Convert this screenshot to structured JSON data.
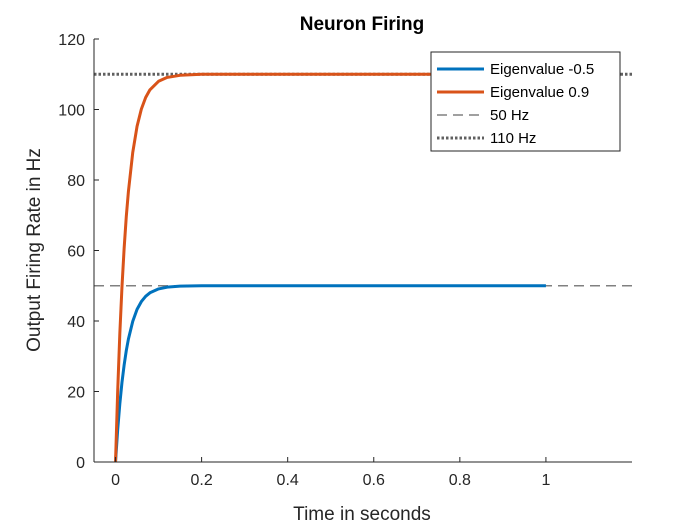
{
  "chart_data": {
    "type": "line",
    "title": "Neuron Firing",
    "xlabel": "Time in seconds",
    "ylabel": "Output Firing Rate in Hz",
    "xlim": [
      -0.05,
      1.2
    ],
    "ylim": [
      0,
      120
    ],
    "xticks": [
      0,
      0.2,
      0.4,
      0.6,
      0.8,
      1
    ],
    "xtick_labels": [
      "0",
      "0.2",
      "0.4",
      "0.6",
      "0.8",
      "1"
    ],
    "yticks": [
      0,
      20,
      40,
      60,
      80,
      100,
      120
    ],
    "ytick_labels": [
      "0",
      "20",
      "40",
      "60",
      "80",
      "100",
      "120"
    ],
    "grid": false,
    "legend_position": "top-right",
    "series": [
      {
        "name": "Eigenvalue -0.5",
        "color": "#0072BD",
        "style": "solid",
        "x": [
          0,
          0.005,
          0.01,
          0.015,
          0.02,
          0.025,
          0.03,
          0.04,
          0.05,
          0.06,
          0.07,
          0.08,
          0.1,
          0.12,
          0.15,
          0.2,
          0.3,
          0.5,
          0.7,
          1.0
        ],
        "y": [
          0,
          9.1,
          16.5,
          22.6,
          27.5,
          31.6,
          34.9,
          39.9,
          43.3,
          45.5,
          47.0,
          48.0,
          49.1,
          49.6,
          49.9,
          50.0,
          50.0,
          50.0,
          50.0,
          50.0
        ]
      },
      {
        "name": "Eigenvalue 0.9",
        "color": "#D95319",
        "style": "solid",
        "x": [
          0,
          0.005,
          0.01,
          0.015,
          0.02,
          0.025,
          0.03,
          0.04,
          0.05,
          0.06,
          0.07,
          0.08,
          0.1,
          0.12,
          0.15,
          0.2,
          0.3,
          0.5,
          0.7,
          1.0
        ],
        "y": [
          0,
          20.0,
          36.4,
          49.7,
          60.6,
          69.6,
          76.8,
          87.8,
          95.2,
          100.1,
          103.4,
          105.6,
          108.0,
          109.1,
          109.7,
          110.0,
          110.0,
          110.0,
          110.0,
          110.0
        ]
      },
      {
        "name": "50 Hz",
        "color": "#808080",
        "style": "dashed",
        "x": [
          -0.05,
          1.2
        ],
        "y": [
          50,
          50
        ]
      },
      {
        "name": "110 Hz",
        "color": "#606060",
        "style": "dotted",
        "x": [
          -0.05,
          1.2
        ],
        "y": [
          110,
          110
        ]
      }
    ]
  }
}
